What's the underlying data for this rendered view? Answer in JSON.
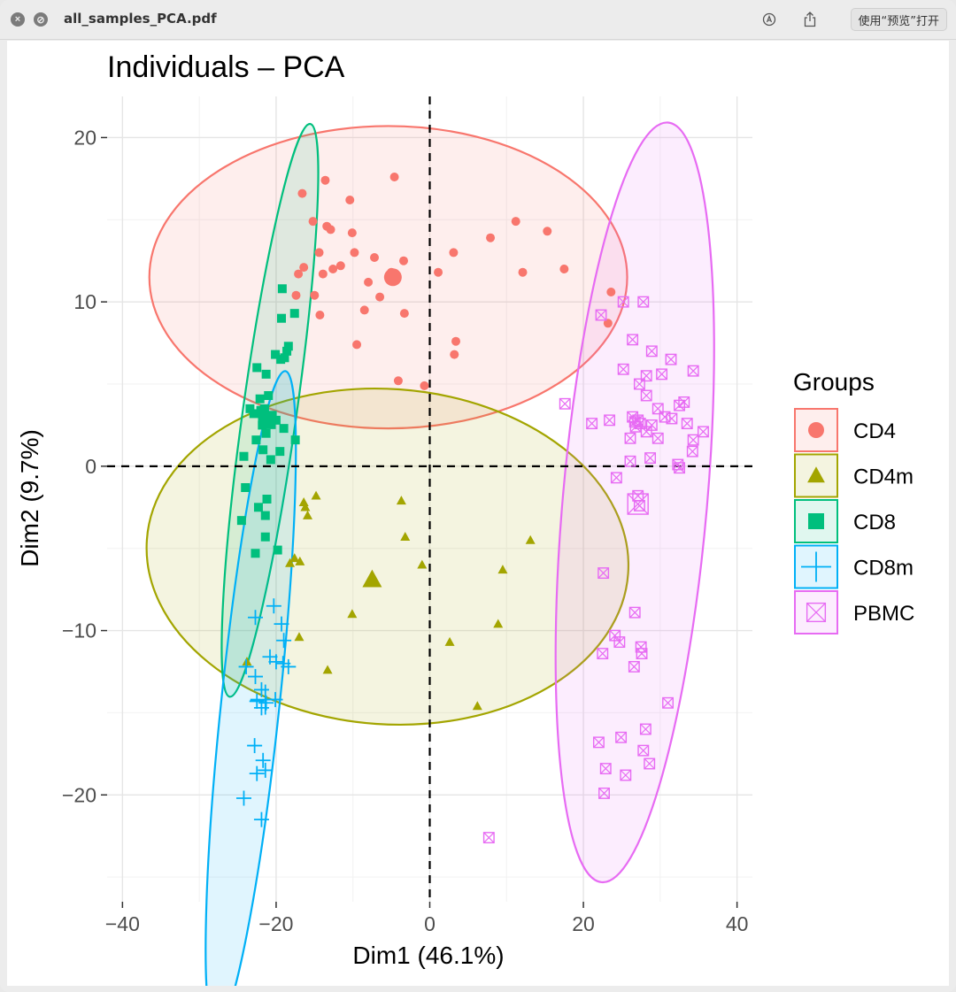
{
  "window": {
    "title": "all_samples_PCA.pdf",
    "open_button": "使用“预览”打开",
    "icons": [
      "close-icon",
      "minimize-icon",
      "markup-icon",
      "share-icon"
    ]
  },
  "chart_data": {
    "type": "scatter",
    "title": "Individuals – PCA",
    "xlabel": "Dim1 (46.1%)",
    "ylabel": "Dim2 (9.7%)",
    "xlim": [
      -42,
      42
    ],
    "ylim": [
      -26.5,
      22.5
    ],
    "xticks": [
      -40,
      -20,
      0,
      20,
      40
    ],
    "yticks": [
      20,
      10,
      0,
      -10,
      -20
    ],
    "xtick_labels": [
      "−40",
      "−20",
      "0",
      "20",
      "40"
    ],
    "ytick_labels": [
      "20",
      "10",
      "0",
      "−10",
      "−20"
    ],
    "grid": true,
    "reference_lines": {
      "x": 0,
      "y": 0,
      "style": "dashed"
    },
    "legend": {
      "title": "Groups",
      "placement": "right"
    },
    "series": [
      {
        "name": "CD4",
        "color": "#f8766d",
        "marker": "circle",
        "centroid": [
          -4.8,
          11.5
        ],
        "ellipse": {
          "cx": -5.4,
          "cy": 11.5,
          "rx": 31.1,
          "ry": 9.2,
          "rotation": 0
        },
        "points": [
          [
            -16.6,
            16.6
          ],
          [
            -13.6,
            17.4
          ],
          [
            -4.6,
            17.6
          ],
          [
            -10.4,
            16.2
          ],
          [
            -15.2,
            14.9
          ],
          [
            -13.4,
            14.6
          ],
          [
            -12.9,
            14.4
          ],
          [
            -10.1,
            14.2
          ],
          [
            3.1,
            13.0
          ],
          [
            7.9,
            13.9
          ],
          [
            11.2,
            14.9
          ],
          [
            15.3,
            14.3
          ],
          [
            -14.4,
            13.0
          ],
          [
            -9.8,
            13.0
          ],
          [
            -16.4,
            12.1
          ],
          [
            -17.1,
            11.7
          ],
          [
            -12.6,
            12.0
          ],
          [
            -11.6,
            12.2
          ],
          [
            -7.2,
            12.7
          ],
          [
            -3.4,
            12.5
          ],
          [
            1.1,
            11.8
          ],
          [
            12.1,
            11.8
          ],
          [
            17.5,
            12.0
          ],
          [
            -5.0,
            11.8
          ],
          [
            -8.0,
            11.2
          ],
          [
            -15.0,
            10.4
          ],
          [
            -17.4,
            10.4
          ],
          [
            -14.3,
            9.2
          ],
          [
            -8.5,
            9.5
          ],
          [
            -6.5,
            10.3
          ],
          [
            -3.3,
            9.3
          ],
          [
            23.6,
            10.6
          ],
          [
            23.2,
            8.7
          ],
          [
            -9.5,
            7.4
          ],
          [
            3.4,
            7.6
          ],
          [
            3.2,
            6.8
          ],
          [
            -4.1,
            5.2
          ],
          [
            -0.7,
            4.9
          ],
          [
            -13.9,
            11.7
          ]
        ]
      },
      {
        "name": "CD4m",
        "color": "#a3a500",
        "marker": "triangle",
        "centroid": [
          -7.5,
          -6.9
        ],
        "ellipse": {
          "cx": -5.5,
          "cy": -5.5,
          "rx": 31.4,
          "ry": 10.2,
          "rotation": 4
        },
        "points": [
          [
            -14.8,
            -1.8
          ],
          [
            -16.2,
            -2.5
          ],
          [
            -16.4,
            -2.2
          ],
          [
            -15.9,
            -3.0
          ],
          [
            -3.7,
            -2.1
          ],
          [
            -3.2,
            -4.3
          ],
          [
            -18.2,
            -5.9
          ],
          [
            -17.6,
            -5.6
          ],
          [
            -16.9,
            -5.8
          ],
          [
            -1.0,
            -6.0
          ],
          [
            9.5,
            -6.3
          ],
          [
            13.1,
            -4.5
          ],
          [
            -10.1,
            -9.0
          ],
          [
            -17.0,
            -10.4
          ],
          [
            8.9,
            -9.6
          ],
          [
            2.6,
            -10.7
          ],
          [
            -13.3,
            -12.4
          ],
          [
            6.2,
            -14.6
          ],
          [
            -23.8,
            -11.9
          ]
        ]
      },
      {
        "name": "CD8",
        "color": "#00bf7d",
        "marker": "square",
        "centroid": [
          -21.2,
          2.8
        ],
        "ellipse": {
          "cx": -20.8,
          "cy": 3.4,
          "rx": 3.5,
          "ry": 17.6,
          "rotation": 8
        },
        "points": [
          [
            -19.2,
            10.8
          ],
          [
            -19.3,
            9.0
          ],
          [
            -17.6,
            9.3
          ],
          [
            -18.6,
            7.0
          ],
          [
            -20.1,
            6.8
          ],
          [
            -19.4,
            6.5
          ],
          [
            -18.9,
            6.6
          ],
          [
            -18.4,
            7.3
          ],
          [
            -22.5,
            6.0
          ],
          [
            -21.3,
            5.6
          ],
          [
            -22.1,
            4.1
          ],
          [
            -23.4,
            3.5
          ],
          [
            -22.9,
            3.2
          ],
          [
            -22.0,
            3.4
          ],
          [
            -21.5,
            3.5
          ],
          [
            -21.0,
            4.3
          ],
          [
            -20.5,
            3.1
          ],
          [
            -21.8,
            2.5
          ],
          [
            -20.0,
            2.8
          ],
          [
            -19.0,
            2.3
          ],
          [
            -22.6,
            1.6
          ],
          [
            -21.3,
            2.0
          ],
          [
            -17.5,
            1.6
          ],
          [
            -21.7,
            1.0
          ],
          [
            -20.7,
            0.4
          ],
          [
            -19.5,
            0.9
          ],
          [
            -24.0,
            -1.3
          ],
          [
            -22.3,
            -2.5
          ],
          [
            -21.2,
            -2.0
          ],
          [
            -21.4,
            -3.0
          ],
          [
            -24.5,
            -3.3
          ],
          [
            -21.4,
            -4.3
          ],
          [
            -22.7,
            -5.3
          ],
          [
            -19.8,
            -5.1
          ],
          [
            -24.2,
            0.6
          ]
        ]
      },
      {
        "name": "CD8m",
        "color": "#00b0f6",
        "marker": "plus",
        "centroid": [
          -21.4,
          -14.2
        ],
        "ellipse": {
          "cx": -23.3,
          "cy": -14.2,
          "rx": 3.8,
          "ry": 20.1,
          "rotation": 6
        },
        "points": [
          [
            -20.3,
            -8.5
          ],
          [
            -22.7,
            -9.2
          ],
          [
            -19.3,
            -9.6
          ],
          [
            -19.0,
            -10.6
          ],
          [
            -20.8,
            -11.6
          ],
          [
            -20.0,
            -11.9
          ],
          [
            -19.1,
            -12.0
          ],
          [
            -18.4,
            -12.2
          ],
          [
            -23.9,
            -12.2
          ],
          [
            -22.7,
            -12.8
          ],
          [
            -21.9,
            -13.6
          ],
          [
            -20.1,
            -14.2
          ],
          [
            -22.5,
            -14.3
          ],
          [
            -21.9,
            -14.7
          ],
          [
            -22.8,
            -17.0
          ],
          [
            -21.7,
            -17.9
          ],
          [
            -22.5,
            -18.7
          ],
          [
            -21.4,
            -18.5
          ],
          [
            -24.2,
            -20.2
          ],
          [
            -21.9,
            -21.5
          ],
          [
            -21.3,
            -14.4
          ]
        ]
      },
      {
        "name": "PBMC",
        "color": "#e76bf3",
        "marker": "square-cross",
        "centroid": [
          27.1,
          -2.3
        ],
        "ellipse": {
          "cx": 26.7,
          "cy": -2.2,
          "rx": 9.4,
          "ry": 23.2,
          "rotation": 5
        },
        "points": [
          [
            27.8,
            10.0
          ],
          [
            25.2,
            10.0
          ],
          [
            22.3,
            9.2
          ],
          [
            26.4,
            7.7
          ],
          [
            28.9,
            7.0
          ],
          [
            31.4,
            6.5
          ],
          [
            34.3,
            5.8
          ],
          [
            25.2,
            5.9
          ],
          [
            28.2,
            5.5
          ],
          [
            30.2,
            5.6
          ],
          [
            27.3,
            5.0
          ],
          [
            28.2,
            4.3
          ],
          [
            33.1,
            3.9
          ],
          [
            29.7,
            3.5
          ],
          [
            32.5,
            3.7
          ],
          [
            30.6,
            3.0
          ],
          [
            26.7,
            2.7
          ],
          [
            27.1,
            2.8
          ],
          [
            27.4,
            2.6
          ],
          [
            28.9,
            2.5
          ],
          [
            31.5,
            2.9
          ],
          [
            33.5,
            2.6
          ],
          [
            35.6,
            2.1
          ],
          [
            29.7,
            1.7
          ],
          [
            34.3,
            1.6
          ],
          [
            17.6,
            3.8
          ],
          [
            21.1,
            2.6
          ],
          [
            23.4,
            2.8
          ],
          [
            26.4,
            3.0
          ],
          [
            26.8,
            2.4
          ],
          [
            28.2,
            2.1
          ],
          [
            26.1,
            1.7
          ],
          [
            34.2,
            0.9
          ],
          [
            28.7,
            0.5
          ],
          [
            26.1,
            0.3
          ],
          [
            32.5,
            -0.1
          ],
          [
            32.3,
            0.1
          ],
          [
            24.3,
            -0.7
          ],
          [
            27.1,
            -1.8
          ],
          [
            27.3,
            -2.4
          ],
          [
            22.6,
            -6.5
          ],
          [
            26.7,
            -8.9
          ],
          [
            24.1,
            -10.3
          ],
          [
            24.7,
            -10.7
          ],
          [
            27.5,
            -11.0
          ],
          [
            27.6,
            -11.4
          ],
          [
            22.5,
            -11.4
          ],
          [
            26.6,
            -12.2
          ],
          [
            31.0,
            -14.4
          ],
          [
            22.0,
            -16.8
          ],
          [
            24.9,
            -16.5
          ],
          [
            28.1,
            -16.0
          ],
          [
            27.8,
            -17.3
          ],
          [
            22.9,
            -18.4
          ],
          [
            28.6,
            -18.1
          ],
          [
            25.5,
            -18.8
          ],
          [
            22.7,
            -19.9
          ],
          [
            7.7,
            -22.6
          ]
        ]
      }
    ]
  }
}
